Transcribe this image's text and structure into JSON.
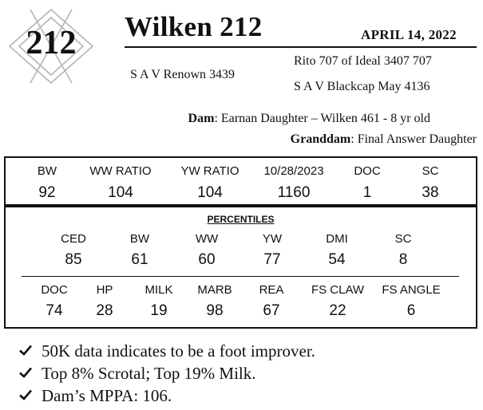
{
  "lot": {
    "number": "212"
  },
  "header": {
    "name": "Wilken 212",
    "date": "APRIL  14, 2022"
  },
  "pedigree": {
    "sire": "S A V Renown 3439",
    "sire_sire": "Rito 707 of Ideal 3407 707",
    "sire_dam": "S A V Blackcap May 4136",
    "dam_label": "Dam",
    "dam": "Earnan Daughter – Wilken 461 - 8 yr old",
    "granddam_label": "Granddam",
    "granddam": "Final Answer Daughter"
  },
  "epd": {
    "columns": [
      {
        "header": "BW",
        "value": "92"
      },
      {
        "header": "WW RATIO",
        "value": "104"
      },
      {
        "header": "YW RATIO",
        "value": "104"
      },
      {
        "header": "10/28/2023",
        "value": "1160"
      },
      {
        "header": "DOC",
        "value": "1"
      },
      {
        "header": "SC",
        "value": "38"
      }
    ]
  },
  "percentiles": {
    "title": "PERCENTILES",
    "row1": [
      {
        "header": "CED",
        "value": "85"
      },
      {
        "header": "BW",
        "value": "61"
      },
      {
        "header": "WW",
        "value": "60"
      },
      {
        "header": "YW",
        "value": "77"
      },
      {
        "header": "DMI",
        "value": "54"
      },
      {
        "header": "SC",
        "value": "8"
      }
    ],
    "row2": [
      {
        "header": "DOC",
        "value": "74"
      },
      {
        "header": "HP",
        "value": "28"
      },
      {
        "header": "MILK",
        "value": "19"
      },
      {
        "header": "MARB",
        "value": "98"
      },
      {
        "header": "REA",
        "value": "67"
      },
      {
        "header": "FS CLAW",
        "value": "22"
      },
      {
        "header": "FS ANGLE",
        "value": "6"
      }
    ]
  },
  "notes": [
    "50K data indicates to be a foot improver.",
    "Top 8% Scrotal; Top 19% Milk.",
    "Dam’s MPPA: 106."
  ],
  "icons": {
    "bullet": "check-mark-icon",
    "badge": "diamond-lattice-icon"
  }
}
